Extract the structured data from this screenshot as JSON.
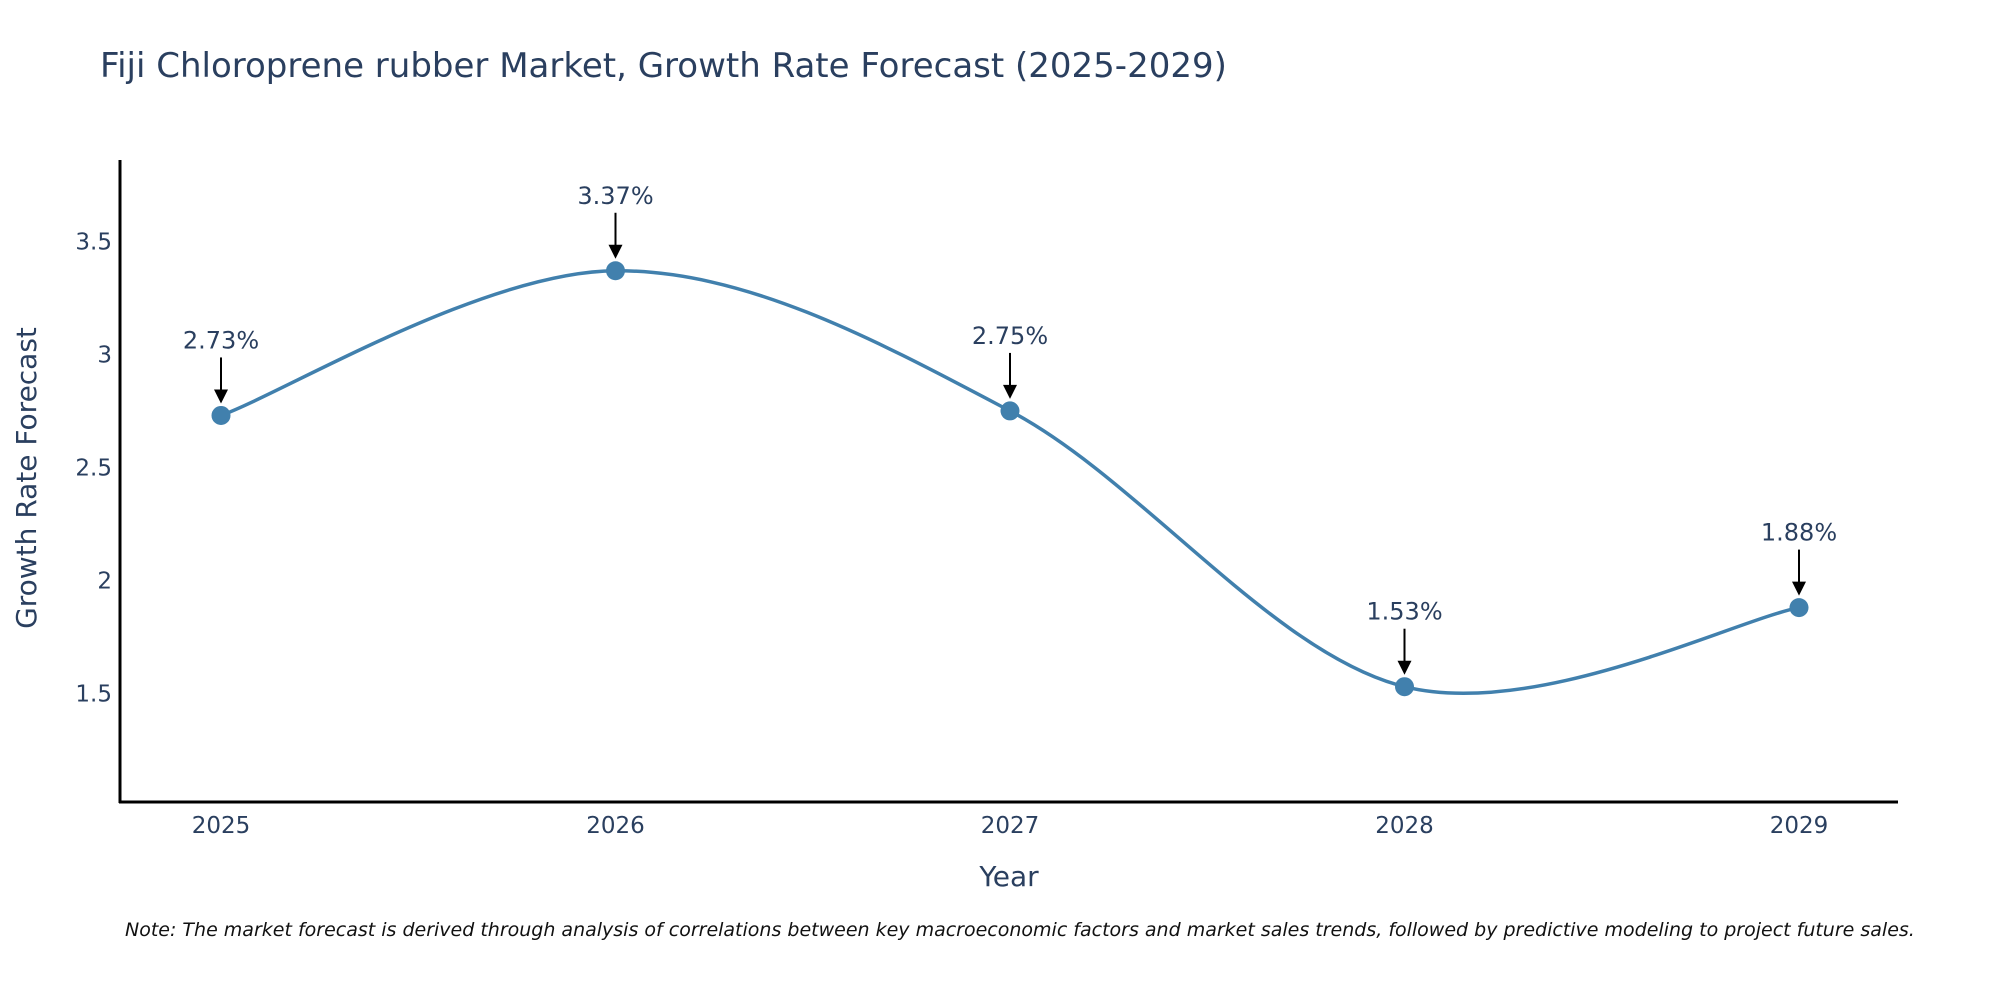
{
  "colors": {
    "line": "#4180ad",
    "axis": "#000000",
    "text": "#2a3f5f",
    "arrow": "#000000"
  },
  "chart_data": {
    "type": "line",
    "title": "Fiji Chloroprene rubber Market, Growth Rate Forecast (2025-2029)",
    "xlabel": "Year",
    "ylabel": "Growth Rate Forecast",
    "categories": [
      "2025",
      "2026",
      "2027",
      "2028",
      "2029"
    ],
    "series": [
      {
        "name": "Growth Rate Forecast",
        "values": [
          2.73,
          3.37,
          2.75,
          1.53,
          1.88
        ]
      }
    ],
    "data_labels": [
      "2.73%",
      "3.37%",
      "2.75%",
      "1.53%",
      "1.88%"
    ],
    "y_ticks": [
      1.5,
      2,
      2.5,
      3,
      3.5
    ],
    "y_tick_labels": [
      "1.5",
      "2",
      "2.5",
      "3",
      "3.5"
    ],
    "ylim": [
      1.02,
      3.86
    ],
    "grid": false,
    "smoothing": "spline"
  },
  "footnote": "Note: The market forecast is derived through analysis of correlations between key macroeconomic factors and market sales trends, followed by predictive modeling to project future sales."
}
